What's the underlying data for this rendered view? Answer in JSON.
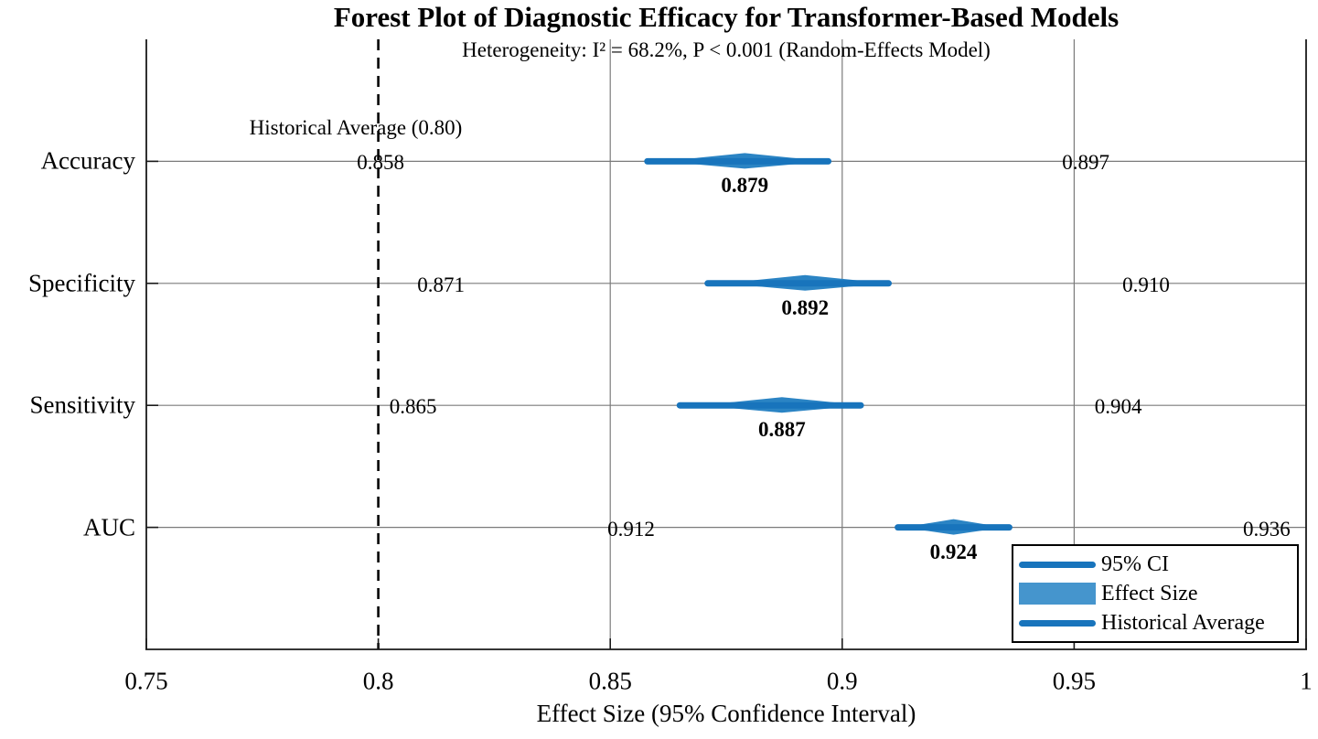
{
  "chart_data": {
    "type": "forest",
    "title": "Forest Plot of Diagnostic Efficacy for Transformer-Based Models",
    "subtitle": "Heterogeneity: I² = 68.2%, P < 0.001 (Random-Effects Model)",
    "xlabel": "Effect Size (95% Confidence Interval)",
    "xlim": [
      0.75,
      1.0
    ],
    "x_ticks": [
      {
        "value": 0.75,
        "label": "0.75"
      },
      {
        "value": 0.8,
        "label": "0.8"
      },
      {
        "value": 0.85,
        "label": "0.85"
      },
      {
        "value": 0.9,
        "label": "0.9"
      },
      {
        "value": 0.95,
        "label": "0.95"
      },
      {
        "value": 1.0,
        "label": "1"
      }
    ],
    "grid_x_values": [
      0.85,
      0.9,
      0.95
    ],
    "grid": true,
    "reference_line": {
      "value": 0.8,
      "style": "dashed",
      "label": "Historical Average (0.80)"
    },
    "categories": [
      "Accuracy",
      "Specificity",
      "Sensitivity",
      "AUC"
    ],
    "rows": [
      {
        "label": "Accuracy",
        "effect": 0.879,
        "ci_lower": 0.858,
        "ci_upper": 0.897,
        "effect_text": "0.879",
        "lower_text": "0.858",
        "upper_text": "0.897"
      },
      {
        "label": "Specificity",
        "effect": 0.892,
        "ci_lower": 0.871,
        "ci_upper": 0.91,
        "effect_text": "0.892",
        "lower_text": "0.871",
        "upper_text": "0.910"
      },
      {
        "label": "Sensitivity",
        "effect": 0.887,
        "ci_lower": 0.865,
        "ci_upper": 0.904,
        "effect_text": "0.887",
        "lower_text": "0.865",
        "upper_text": "0.904"
      },
      {
        "label": "AUC",
        "effect": 0.924,
        "ci_lower": 0.912,
        "ci_upper": 0.936,
        "effect_text": "0.924",
        "lower_text": "0.912",
        "upper_text": "0.936"
      }
    ],
    "legend": [
      {
        "swatch": "line",
        "label": "95% CI"
      },
      {
        "swatch": "patch",
        "label": "Effect Size"
      },
      {
        "swatch": "line",
        "label": "Historical Average"
      }
    ],
    "legend_position": "lower right",
    "colors": {
      "ci_line": "#1874bc",
      "effect_marker": "#2b84c4",
      "effect_patch": "#4595cd",
      "reference_line": "#000000",
      "grid": "#7b7b7b",
      "axis": "#1a1a1a",
      "text": "#000000"
    }
  }
}
